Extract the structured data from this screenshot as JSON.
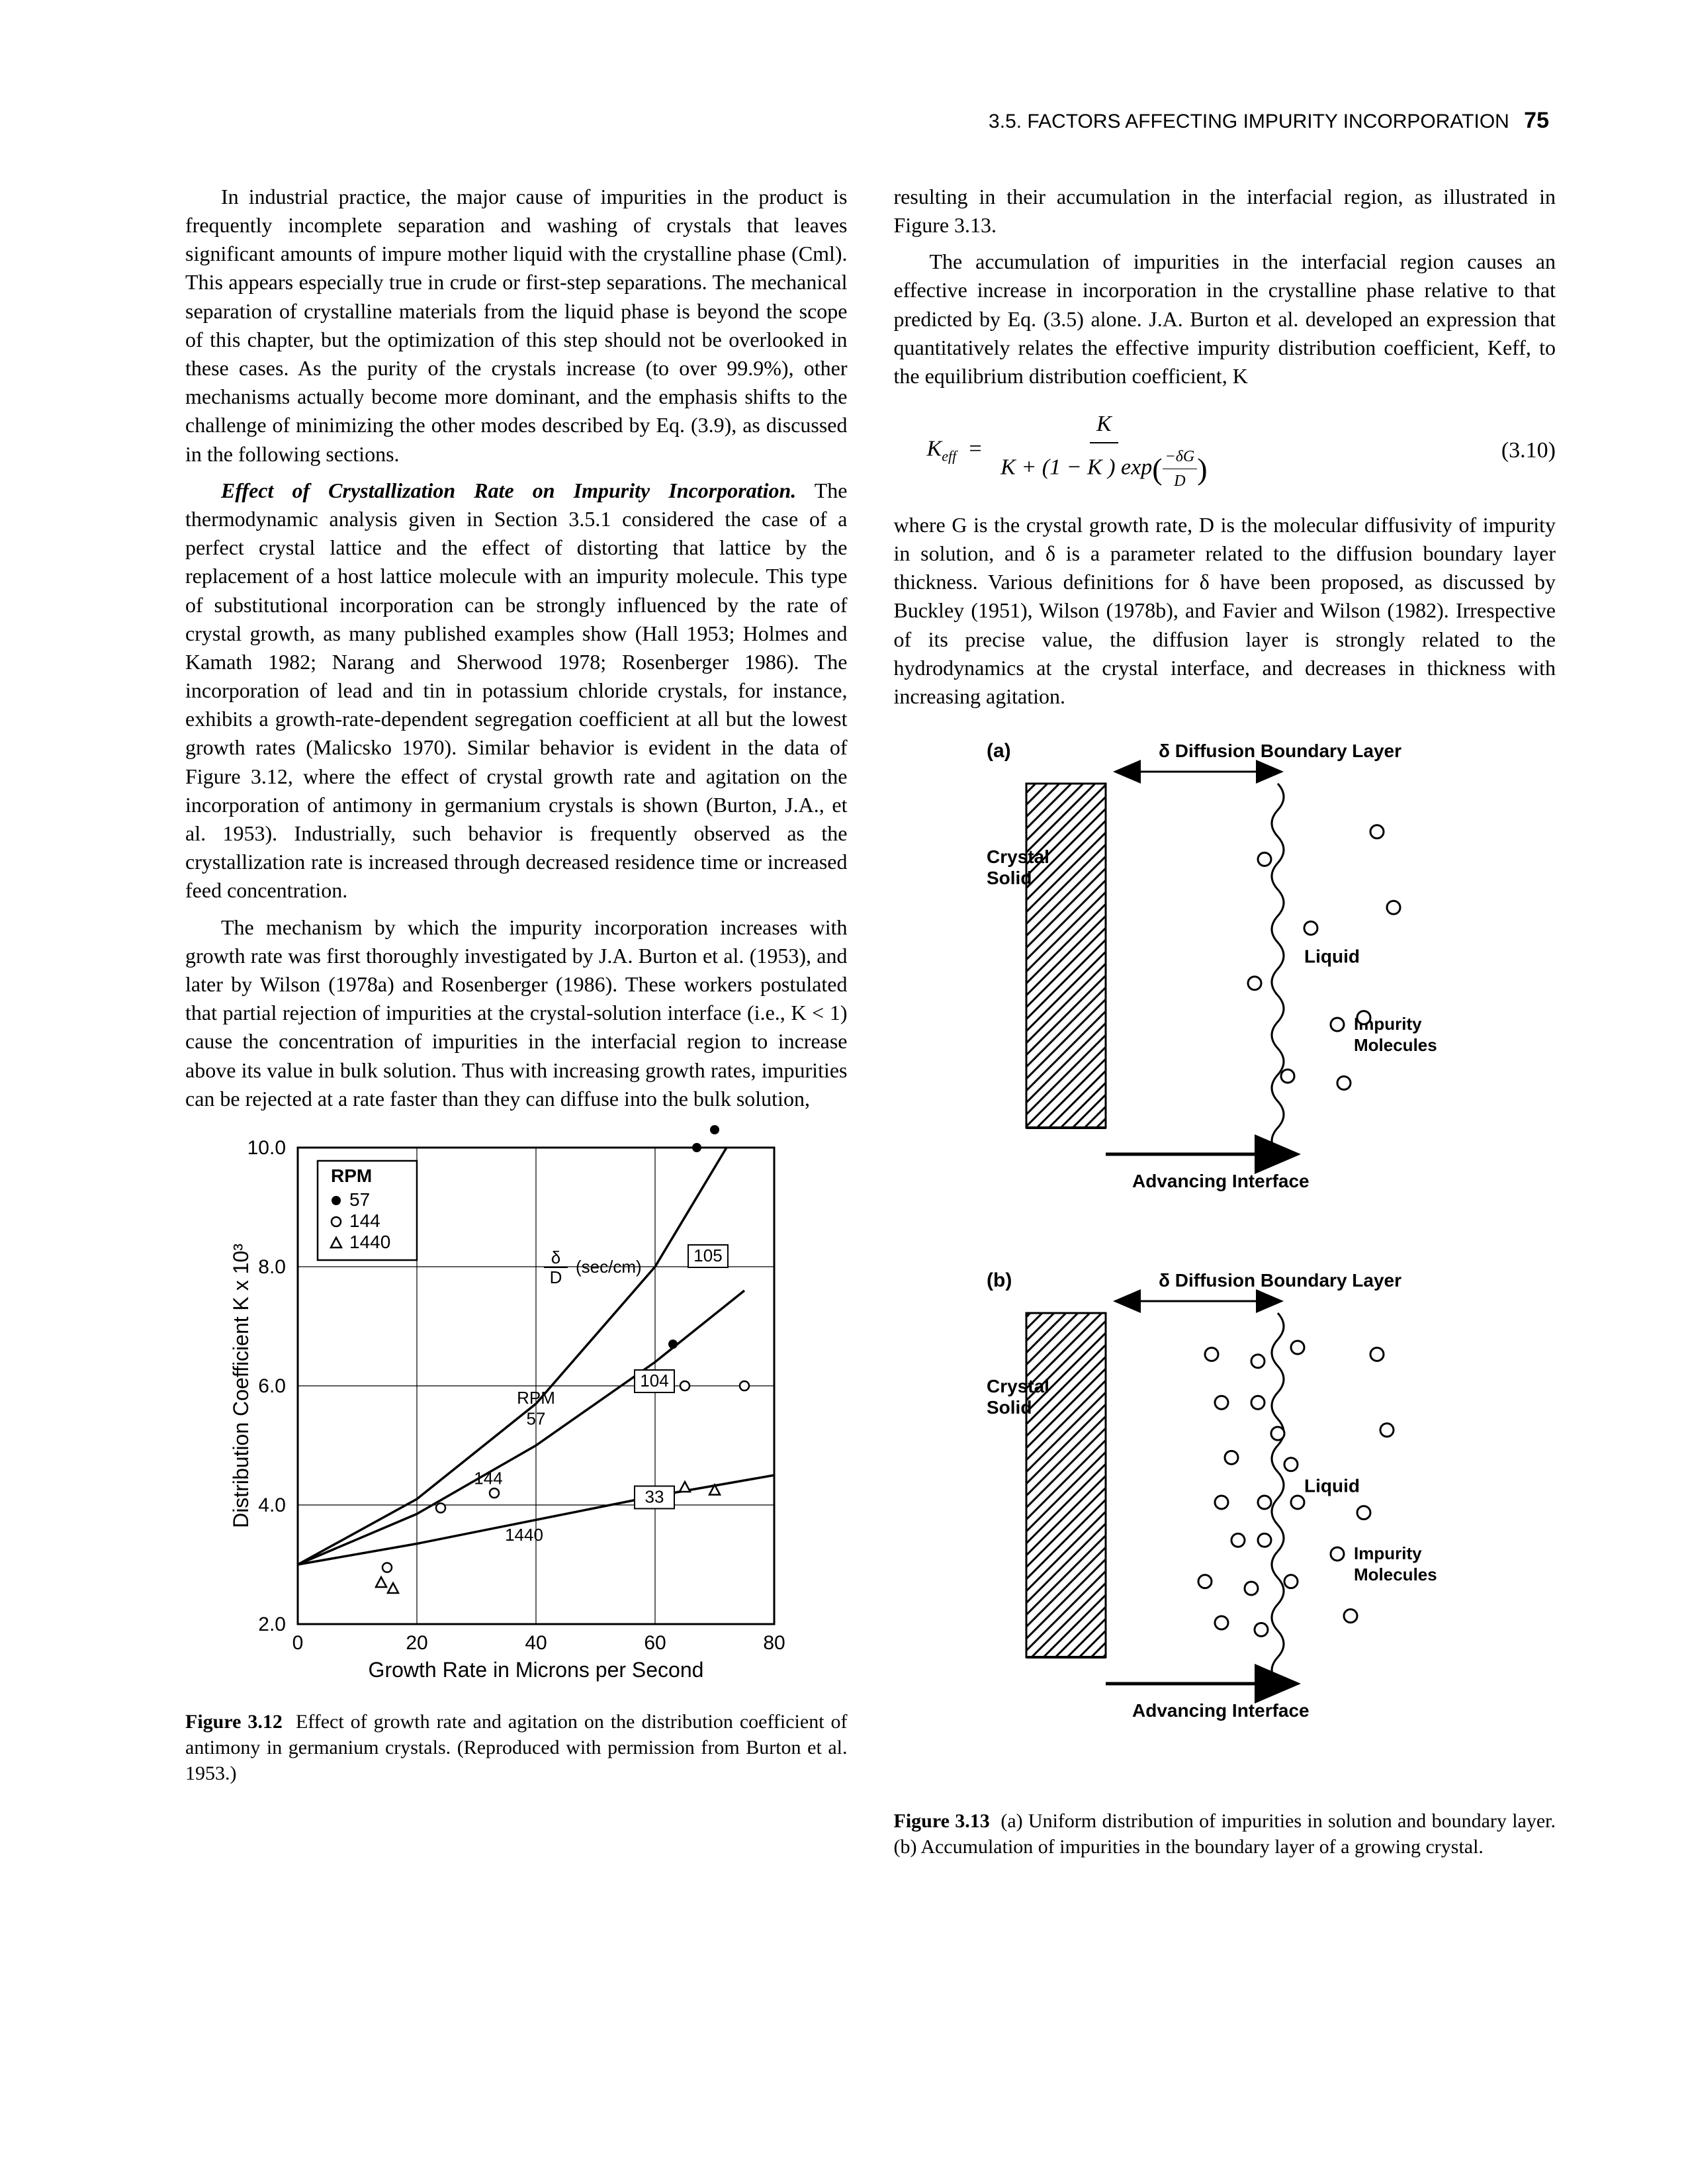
{
  "header": {
    "section": "3.5. FACTORS AFFECTING IMPURITY INCORPORATION",
    "page": "75"
  },
  "left": {
    "p1": "In industrial practice, the major cause of impurities in the product is frequently incomplete separation and washing of crystals that leaves significant amounts of impure mother liquid with the crystalline phase (Cml). This appears especially true in crude or first-step separations. The mechanical separation of crystalline materials from the liquid phase is beyond the scope of this chapter, but the optimization of this step should not be overlooked in these cases. As the purity of the crystals increase (to over 99.9%), other mechanisms actually become more dominant, and the emphasis shifts to the challenge of minimizing the other modes described by Eq. (3.9), as discussed in the following sections.",
    "h2": "Effect of Crystallization Rate on Impurity Incorporation.",
    "p2": " The thermodynamic analysis given in Section 3.5.1 considered the case of a perfect crystal lattice and the effect of distorting that lattice by the replacement of a host lattice molecule with an impurity molecule. This type of substitutional incorporation can be strongly influenced by the rate of crystal growth, as many published examples show (Hall 1953; Holmes and Kamath 1982; Narang and Sherwood 1978; Rosenberger 1986). The incorporation of lead and tin in potassium chloride crystals, for instance, exhibits a growth-rate-dependent segregation coefficient at all but the lowest growth rates (Malicsko 1970). Similar behavior is evident in the data of Figure 3.12, where the effect of crystal growth rate and agitation on the incorporation of antimony in germanium crystals is shown (Burton, J.A., et al. 1953). Industrially, such behavior is frequently observed as the crystallization rate is increased through decreased residence time or increased feed concentration.",
    "p3": "The mechanism by which the impurity incorporation increases with growth rate was first thoroughly investigated by J.A. Burton et al. (1953), and later by Wilson (1978a) and Rosenberger (1986). These workers postulated that partial rejection of impurities at the crystal-solution interface (i.e., K < 1) cause the concentration of impurities in the interfacial region to increase above its value in bulk solution. Thus with increasing growth rates, impurities can be rejected at a rate faster than they can diffuse into the bulk solution,"
  },
  "right": {
    "p1": "resulting in their accumulation in the interfacial region, as illustrated in Figure 3.13.",
    "p2": "The accumulation of impurities in the interfacial region causes an effective increase in incorporation in the crystalline phase relative to that predicted by Eq. (3.5) alone. J.A. Burton et al. developed an expression that quantitatively relates the effective impurity distribution coefficient, Keff, to the equilibrium distribution coefficient, K",
    "eqnum": "(3.10)",
    "p3": "where G is the crystal growth rate, D is the molecular diffusivity of impurity in solution, and δ is a parameter related to the diffusion boundary layer thickness. Various definitions for δ have been proposed, as discussed by Buckley (1951), Wilson (1978b), and Favier and Wilson (1982). Irrespective of its precise value, the diffusion layer is strongly related to the hydrodynamics at the crystal interface, and decreases in thickness with increasing agitation."
  },
  "fig312": {
    "type": "line+scatter",
    "xlabel": "Growth Rate in Microns per Second",
    "ylabel": "Distribution Coefficient  K x 10³",
    "xlim": [
      0,
      80
    ],
    "xtick_step": 20,
    "ylim": [
      2.0,
      10.0
    ],
    "yticks": [
      2.0,
      4.0,
      6.0,
      8.0,
      10.0
    ],
    "legend_title": "RPM",
    "legend_items": [
      {
        "marker": "filled-circle",
        "label": "57"
      },
      {
        "marker": "open-circle",
        "label": "144"
      },
      {
        "marker": "open-triangle",
        "label": "1440"
      }
    ],
    "delta_D_label": "δ/D (sec/cm)",
    "curve_labels": [
      "105",
      "104",
      "33"
    ],
    "line_annotations": [
      {
        "text": "RPM 57"
      },
      {
        "text": "144"
      },
      {
        "text": "1440"
      }
    ],
    "curves": [
      {
        "delta_D": "105",
        "points": [
          [
            0,
            3.0
          ],
          [
            20,
            4.1
          ],
          [
            40,
            5.7
          ],
          [
            60,
            8.0
          ],
          [
            72,
            10.0
          ]
        ]
      },
      {
        "delta_D": "104",
        "points": [
          [
            0,
            3.0
          ],
          [
            20,
            3.85
          ],
          [
            40,
            5.0
          ],
          [
            60,
            6.4
          ],
          [
            75,
            7.6
          ]
        ]
      },
      {
        "delta_D": "33",
        "points": [
          [
            0,
            3.0
          ],
          [
            20,
            3.35
          ],
          [
            40,
            3.75
          ],
          [
            60,
            4.15
          ],
          [
            80,
            4.5
          ]
        ]
      }
    ],
    "markers_filled": [
      [
        63,
        6.7
      ],
      [
        67,
        10.0
      ],
      [
        70,
        10.3
      ]
    ],
    "markers_open_circle": [
      [
        15,
        2.95
      ],
      [
        24,
        3.95
      ],
      [
        33,
        4.2
      ],
      [
        65,
        6.0
      ],
      [
        75,
        6.0
      ]
    ],
    "markers_open_triangle": [
      [
        14,
        2.7
      ],
      [
        16,
        2.6
      ],
      [
        65,
        4.3
      ],
      [
        70,
        4.25
      ]
    ],
    "line_color": "#000000",
    "bg": "#ffffff",
    "grid_color": "#000000",
    "caption_num": "Figure 3.12",
    "caption": "Effect of growth rate and agitation on the distribution coefficient of antimony in germanium crystals. (Reproduced with permission from Burton et al. 1953.)"
  },
  "fig313": {
    "panel_a_label": "(a)",
    "panel_b_label": "(b)",
    "layer_label": "δ Diffusion Boundary Layer",
    "crystal_label": "Crystal Solid",
    "liquid_label": "Liquid",
    "impurity_label": "Impurity Molecules",
    "advancing_label": "Advancing Interface",
    "a_impurities": [
      [
        0.48,
        0.22
      ],
      [
        0.82,
        0.14
      ],
      [
        0.87,
        0.36
      ],
      [
        0.62,
        0.42
      ],
      [
        0.45,
        0.58
      ],
      [
        0.78,
        0.68
      ],
      [
        0.55,
        0.85
      ],
      [
        0.72,
        0.87
      ]
    ],
    "b_impurities": [
      [
        0.32,
        0.12
      ],
      [
        0.46,
        0.14
      ],
      [
        0.58,
        0.1
      ],
      [
        0.82,
        0.12
      ],
      [
        0.35,
        0.26
      ],
      [
        0.46,
        0.26
      ],
      [
        0.52,
        0.35
      ],
      [
        0.85,
        0.34
      ],
      [
        0.38,
        0.42
      ],
      [
        0.56,
        0.44
      ],
      [
        0.35,
        0.55
      ],
      [
        0.48,
        0.55
      ],
      [
        0.58,
        0.55
      ],
      [
        0.78,
        0.58
      ],
      [
        0.4,
        0.66
      ],
      [
        0.48,
        0.66
      ],
      [
        0.3,
        0.78
      ],
      [
        0.44,
        0.8
      ],
      [
        0.56,
        0.78
      ],
      [
        0.35,
        0.9
      ],
      [
        0.47,
        0.92
      ],
      [
        0.74,
        0.88
      ]
    ],
    "caption_num": "Figure 3.13",
    "caption": "(a) Uniform distribution of impurities in solution and boundary layer. (b) Accumulation of impurities in the boundary layer of a growing crystal."
  }
}
